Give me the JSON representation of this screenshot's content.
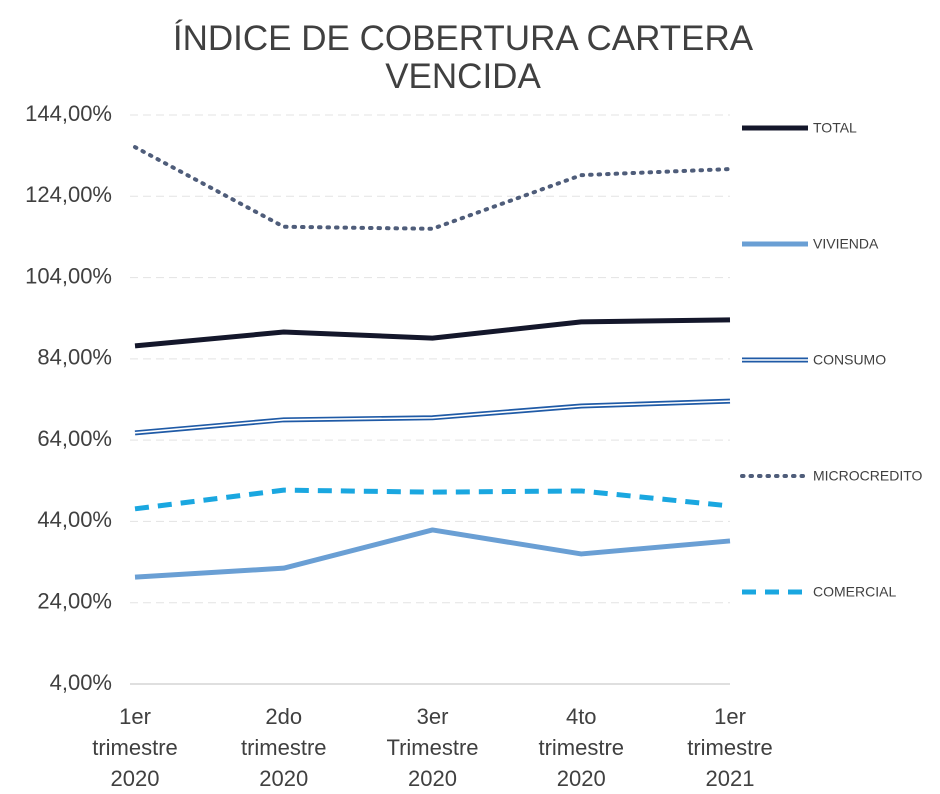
{
  "chart_data": {
    "type": "line",
    "title": "ÍNDICE DE COBERTURA CARTERA VENCIDA",
    "categories": [
      "1er trimestre 2020",
      "2do trimestre 2020",
      "3er Trimestre 2020",
      "4to trimestre 2020",
      "1er trimestre 2021"
    ],
    "series": [
      {
        "name": "TOTAL",
        "color": "#14172b",
        "style": "solid",
        "values": [
          87.2,
          90.6,
          89.1,
          93.1,
          93.6
        ]
      },
      {
        "name": "VIVIENDA",
        "color": "#6a9fd4",
        "style": "solid",
        "values": [
          30.3,
          32.5,
          41.9,
          36.0,
          39.2
        ]
      },
      {
        "name": "CONSUMO",
        "color": "#1f5aa6",
        "style": "double",
        "values": [
          65.8,
          69.0,
          69.5,
          72.4,
          73.6
        ]
      },
      {
        "name": "MICROCREDITO",
        "color": "#4f5d7a",
        "style": "dotted",
        "values": [
          136.1,
          116.5,
          116.0,
          129.2,
          130.7
        ]
      },
      {
        "name": "COMERCIAL",
        "color": "#1aa7e0",
        "style": "dashed",
        "values": [
          47.1,
          51.7,
          51.2,
          51.5,
          47.8
        ]
      }
    ],
    "ylim": [
      4,
      144
    ],
    "yticks": [
      {
        "value": 4,
        "label": "4,00%"
      },
      {
        "value": 24,
        "label": "24,00%"
      },
      {
        "value": 44,
        "label": "44,00%"
      },
      {
        "value": 64,
        "label": "64,00%"
      },
      {
        "value": 84,
        "label": "84,00%"
      },
      {
        "value": 104,
        "label": "104,00%"
      },
      {
        "value": 124,
        "label": "124,00%"
      },
      {
        "value": 144,
        "label": "144,00%"
      }
    ],
    "grid": true,
    "legend": "right"
  }
}
